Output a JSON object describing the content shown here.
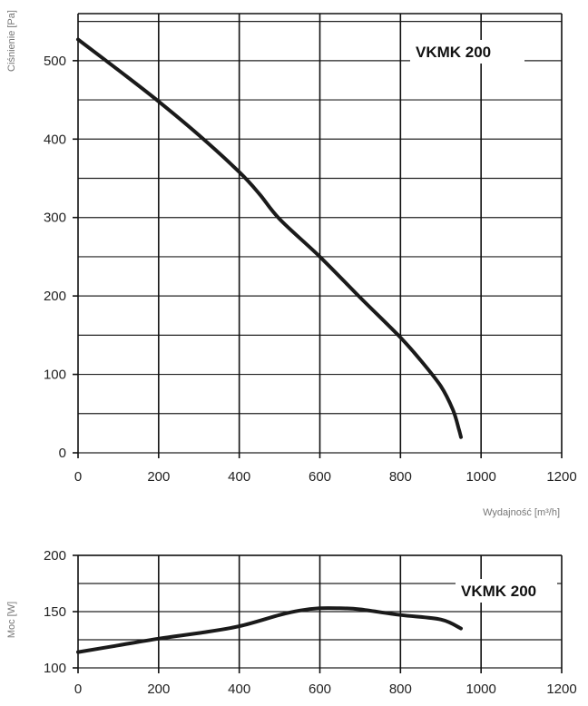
{
  "chart_data": [
    {
      "type": "line",
      "ylabel": "Ciśnienie [Pa]",
      "xlabel": "Wydajność [m³/h]",
      "xlim": [
        0,
        1200
      ],
      "ylim": [
        0,
        560
      ],
      "x_ticks": [
        0,
        200,
        400,
        600,
        800,
        1000,
        1200
      ],
      "y_ticks": [
        0,
        100,
        200,
        300,
        400,
        500
      ],
      "y_gridlines": [
        0,
        50,
        100,
        150,
        200,
        250,
        300,
        350,
        400,
        450,
        500,
        550
      ],
      "grid": true,
      "series": [
        {
          "name": "VKMK 200",
          "x": [
            0,
            100,
            200,
            300,
            400,
            450,
            500,
            600,
            700,
            800,
            850,
            900,
            930,
            945,
            950
          ],
          "y": [
            527,
            488,
            448,
            405,
            358,
            330,
            298,
            250,
            198,
            147,
            118,
            85,
            55,
            30,
            20
          ]
        }
      ]
    },
    {
      "type": "line",
      "ylabel": "Moc [W]",
      "xlim": [
        0,
        1200
      ],
      "ylim": [
        100,
        200
      ],
      "x_ticks": [
        0,
        200,
        400,
        600,
        800,
        1000,
        1200
      ],
      "y_ticks": [
        100,
        150,
        200
      ],
      "y_gridlines": [
        100,
        125,
        150,
        175,
        200
      ],
      "grid": true,
      "series": [
        {
          "name": "VKMK 200",
          "x": [
            0,
            100,
            200,
            300,
            400,
            500,
            550,
            600,
            650,
            700,
            800,
            900,
            950
          ],
          "y": [
            114,
            120,
            126,
            131,
            137,
            147,
            151,
            153,
            153,
            152,
            147,
            143,
            135
          ]
        }
      ]
    }
  ]
}
